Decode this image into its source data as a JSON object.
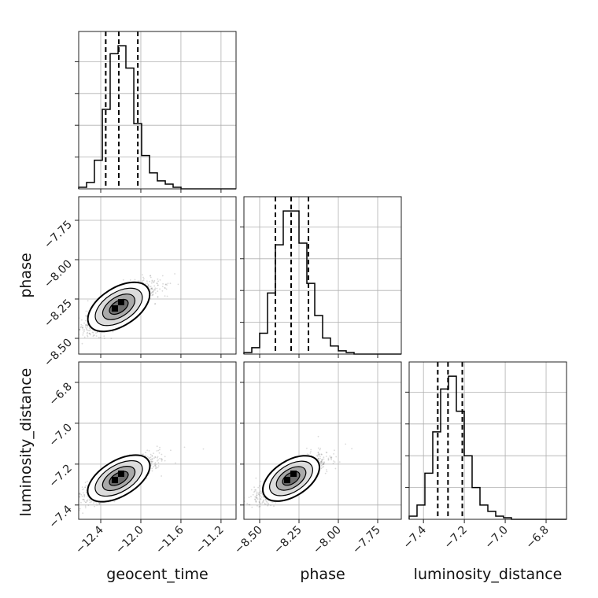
{
  "chart_data": {
    "type": "corner",
    "parameters": [
      "geocent_time",
      "phase",
      "luminosity_distance"
    ],
    "labels": {
      "geocent_time": "geocent_time",
      "phase": "phase",
      "luminosity_distance": "luminosity_distance"
    },
    "ranges": {
      "geocent_time": [
        -12.62,
        -11.05
      ],
      "phase": [
        -8.6,
        -7.6
      ],
      "luminosity_distance": [
        -7.47,
        -6.7
      ]
    },
    "ticks": {
      "geocent_time": [
        -12.4,
        -12.0,
        -11.6,
        -11.2
      ],
      "phase": [
        -8.5,
        -8.25,
        -8.0,
        -7.75
      ],
      "luminosity_distance": [
        -7.4,
        -7.2,
        -7.0,
        -6.8
      ]
    },
    "tick_labels": {
      "geocent_time": [
        "−12.4",
        "−12.0",
        "−11.6",
        "−11.2"
      ],
      "phase": [
        "−8.50",
        "−8.25",
        "−8.00",
        "−7.75"
      ],
      "luminosity_distance": [
        "−7.4",
        "−7.2",
        "−7.0",
        "−6.8"
      ]
    },
    "grid": true,
    "histograms": {
      "geocent_time": {
        "bins": [
          -12.62,
          -12.541,
          -12.463,
          -12.384,
          -12.306,
          -12.227,
          -12.149,
          -12.07,
          -11.992,
          -11.913,
          -11.835,
          -11.756,
          -11.678,
          -11.599,
          -11.521,
          -11.442,
          -11.364,
          -11.285,
          -11.207,
          -11.128,
          -11.05
        ],
        "counts": [
          1,
          4,
          18,
          50,
          85,
          90,
          76,
          41,
          21,
          10,
          5,
          3,
          1,
          0,
          0,
          0,
          0,
          0,
          0,
          0
        ],
        "quantiles": [
          -12.35,
          -12.22,
          -12.03
        ]
      },
      "phase": {
        "bins": [
          -8.6,
          -8.55,
          -8.5,
          -8.45,
          -8.4,
          -8.35,
          -8.3,
          -8.25,
          -8.2,
          -8.15,
          -8.1,
          -8.05,
          -8.0,
          -7.95,
          -7.9,
          -7.85,
          -7.8,
          -7.75,
          -7.7,
          -7.65,
          -7.6
        ],
        "counts": [
          1,
          4,
          13,
          38,
          68,
          89,
          89,
          69,
          44,
          24,
          10,
          5,
          2,
          1,
          0,
          0,
          0,
          0,
          0,
          0
        ],
        "quantiles": [
          -8.4,
          -8.3,
          -8.19
        ]
      },
      "luminosity_distance": {
        "bins": [
          -7.47,
          -7.4315,
          -7.393,
          -7.3545,
          -7.316,
          -7.2775,
          -7.239,
          -7.2005,
          -7.162,
          -7.1235,
          -7.085,
          -7.0465,
          -7.008,
          -6.9695,
          -6.931,
          -6.8925,
          -6.854,
          -6.8155,
          -6.777,
          -6.7385,
          -6.7
        ],
        "counts": [
          2,
          9,
          29,
          55,
          82,
          90,
          68,
          40,
          20,
          9,
          5,
          2,
          1,
          0,
          0,
          0,
          0,
          0,
          0,
          0
        ],
        "quantiles": [
          -7.33,
          -7.28,
          -7.21
        ]
      }
    },
    "pairs": [
      {
        "x": "geocent_time",
        "y": "phase",
        "mean": [
          -12.22,
          -8.3
        ],
        "sd": [
          0.12,
          0.07
        ],
        "corr": 0.8
      },
      {
        "x": "geocent_time",
        "y": "luminosity_distance",
        "mean": [
          -12.22,
          -7.27
        ],
        "sd": [
          0.12,
          0.05
        ],
        "corr": 0.8
      },
      {
        "x": "phase",
        "y": "luminosity_distance",
        "mean": [
          -8.3,
          -7.27
        ],
        "sd": [
          0.07,
          0.05
        ],
        "corr": 0.8
      }
    ]
  }
}
